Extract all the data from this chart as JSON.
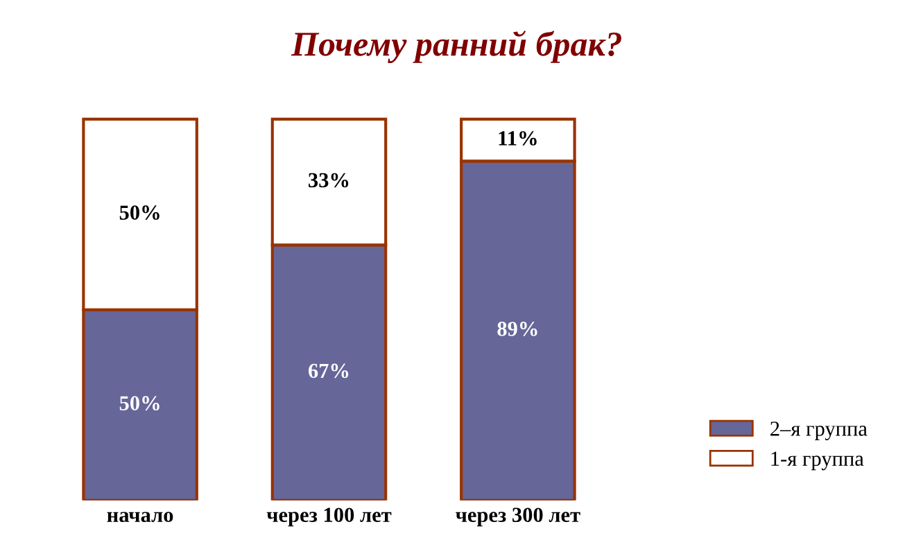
{
  "chart_data": {
    "type": "bar",
    "title": "Почему ранний брак?",
    "stacked": true,
    "legend": "bottom right",
    "categories": [
      "начало",
      "через 100 лет",
      "через 300 лет"
    ],
    "series": [
      {
        "name": "2–я группа",
        "color": "#666699",
        "values": [
          50,
          67,
          89
        ],
        "value_labels": [
          "50%",
          "67%",
          "89%"
        ]
      },
      {
        "name": "1-я группа",
        "color": "#ffffff",
        "values": [
          50,
          33,
          11
        ],
        "value_labels": [
          "50%",
          "33%",
          "11%"
        ]
      }
    ]
  }
}
